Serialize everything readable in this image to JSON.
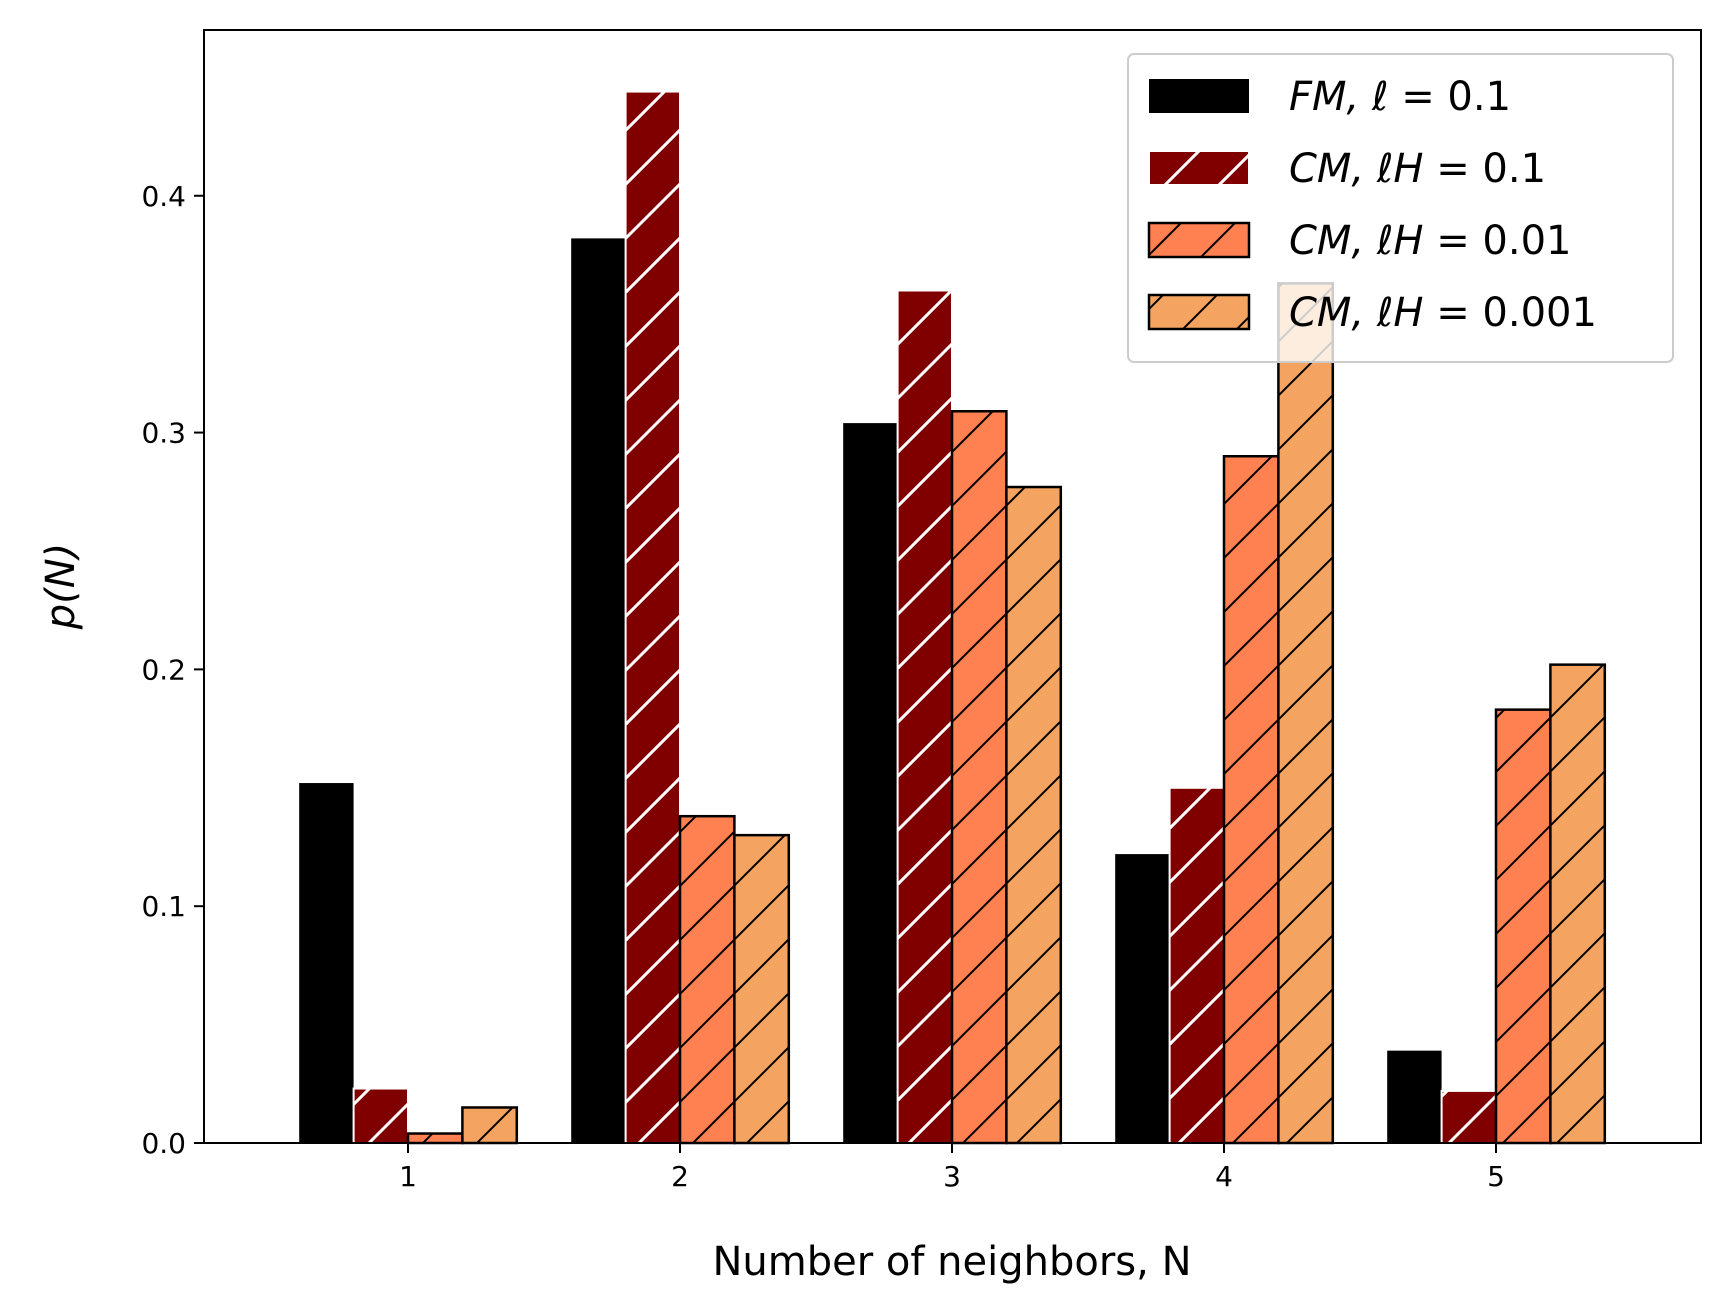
{
  "chart_data": {
    "type": "bar",
    "title": "",
    "xlabel": "Number of neighbors, N",
    "ylabel": "p(N)",
    "categories": [
      "1",
      "2",
      "3",
      "4",
      "5"
    ],
    "ylim": [
      0,
      0.47
    ],
    "yticks": [
      "0.0",
      "0.1",
      "0.2",
      "0.3",
      "0.4"
    ],
    "ytick_values": [
      0,
      0.1,
      0.2,
      0.3,
      0.4
    ],
    "grid": false,
    "legend_position": "top-right",
    "series": [
      {
        "name": "FM, ℓ = 0.1",
        "name_parts": [
          "FM, ℓ",
          " = 0.1"
        ],
        "values": [
          0.152,
          0.382,
          0.304,
          0.122,
          0.039
        ],
        "color": "#000000",
        "hatch": "none"
      },
      {
        "name": "CM, ℓH = 0.1",
        "name_parts": [
          "CM, ℓH",
          " = 0.1"
        ],
        "values": [
          0.023,
          0.444,
          0.36,
          0.15,
          0.022
        ],
        "color": "#800000",
        "hatch": "white"
      },
      {
        "name": "CM, ℓH = 0.01",
        "name_parts": [
          "CM, ℓH",
          " = 0.01"
        ],
        "values": [
          0.004,
          0.138,
          0.309,
          0.29,
          0.183
        ],
        "color": "#FF8050",
        "hatch": "black"
      },
      {
        "name": "CM, ℓH = 0.001",
        "name_parts": [
          "CM, ℓH",
          " = 0.001"
        ],
        "values": [
          0.015,
          0.13,
          0.277,
          0.363,
          0.202
        ],
        "color": "#F4A460",
        "hatch": "black"
      }
    ]
  }
}
